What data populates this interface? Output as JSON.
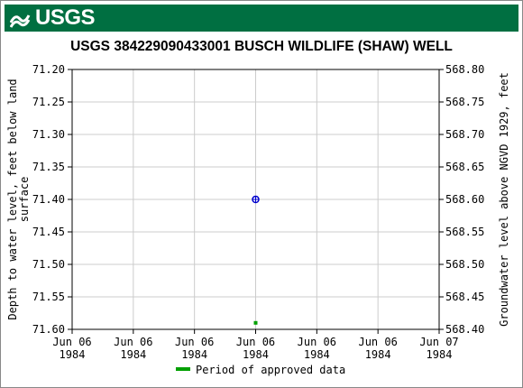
{
  "banner": {
    "logo_text": "USGS",
    "color": "#006f41"
  },
  "chart_data": {
    "type": "scatter",
    "title": "USGS 384229090433001 BUSCH WILDLIFE (SHAW) WELL",
    "ylabel_left": "Depth to water level, feet below land surface",
    "ylabel_right": "Groundwater level above NGVD 1929, feet",
    "y_left_ticks": [
      "71.20",
      "71.25",
      "71.30",
      "71.35",
      "71.40",
      "71.45",
      "71.50",
      "71.55",
      "71.60"
    ],
    "y_right_ticks": [
      "568.80",
      "568.75",
      "568.70",
      "568.65",
      "568.60",
      "568.55",
      "568.50",
      "568.45",
      "568.40"
    ],
    "ylim_left": [
      71.6,
      71.2
    ],
    "ylim_right": [
      568.4,
      568.8
    ],
    "x_ticks": [
      {
        "line1": "Jun 06",
        "line2": "1984"
      },
      {
        "line1": "Jun 06",
        "line2": "1984"
      },
      {
        "line1": "Jun 06",
        "line2": "1984"
      },
      {
        "line1": "Jun 06",
        "line2": "1984"
      },
      {
        "line1": "Jun 06",
        "line2": "1984"
      },
      {
        "line1": "Jun 06",
        "line2": "1984"
      },
      {
        "line1": "Jun 07",
        "line2": "1984"
      }
    ],
    "xlim": [
      "1984-06-06 00:00",
      "1984-06-07 00:00"
    ],
    "series": [
      {
        "name": "Period of approved data",
        "color": "#00a000",
        "x": [
          "1984-06-06 12:00"
        ],
        "y": [
          71.59
        ]
      }
    ],
    "measurement": {
      "x": "1984-06-06 12:00",
      "y": 71.4,
      "color": "#0000cc"
    },
    "grid": true,
    "legend_position": "bottom-center",
    "grid_color": "#cccccc"
  }
}
